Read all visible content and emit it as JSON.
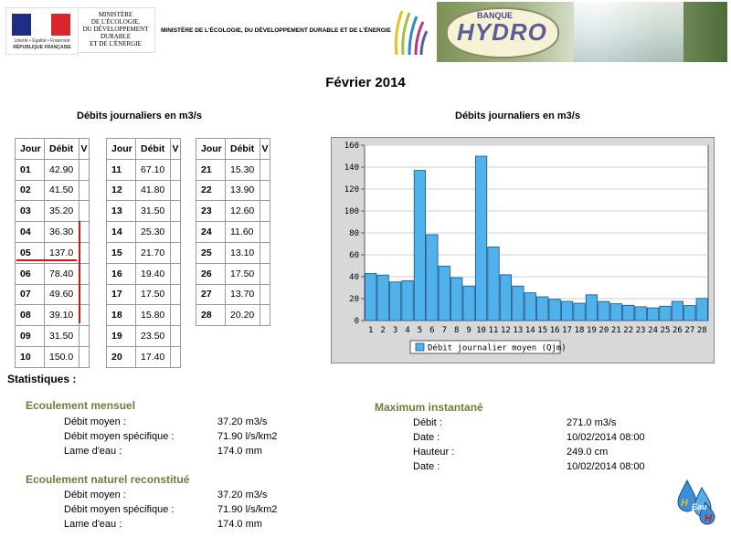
{
  "header": {
    "rf_motto": "Liberté • Égalité • Fraternité",
    "rf_name": "RÉPUBLIQUE FRANÇAISE",
    "ministry_lines": [
      "MINISTÈRE",
      "DE L'ÉCOLOGIE,",
      "DU DÉVELOPPEMENT",
      "DURABLE",
      "ET DE L'ÉNERGIE"
    ],
    "ministry_title": "MINISTÈRE DE L'ÉCOLOGIE, DU DÉVELOPPEMENT DURABLE ET DE L'ÉNERGIE",
    "banner_banque": "BANQUE",
    "banner_hydro": "HYDRO"
  },
  "page_title": "Février 2014",
  "table_section_title": "Débits journaliers en m3/s",
  "chart_section_title": "Débits journaliers en m3/s",
  "table_headers": {
    "day": "Jour",
    "flow": "Débit",
    "v": "V"
  },
  "daily": [
    {
      "day": "01",
      "flow": "42.90"
    },
    {
      "day": "02",
      "flow": "41.50"
    },
    {
      "day": "03",
      "flow": "35.20"
    },
    {
      "day": "04",
      "flow": "36.30"
    },
    {
      "day": "05",
      "flow": "137.0"
    },
    {
      "day": "06",
      "flow": "78.40"
    },
    {
      "day": "07",
      "flow": "49.60"
    },
    {
      "day": "08",
      "flow": "39.10"
    },
    {
      "day": "09",
      "flow": "31.50"
    },
    {
      "day": "10",
      "flow": "150.0"
    },
    {
      "day": "11",
      "flow": "67.10"
    },
    {
      "day": "12",
      "flow": "41.80"
    },
    {
      "day": "13",
      "flow": "31.50"
    },
    {
      "day": "14",
      "flow": "25.30"
    },
    {
      "day": "15",
      "flow": "21.70"
    },
    {
      "day": "16",
      "flow": "19.40"
    },
    {
      "day": "17",
      "flow": "17.50"
    },
    {
      "day": "18",
      "flow": "15.80"
    },
    {
      "day": "19",
      "flow": "23.50"
    },
    {
      "day": "20",
      "flow": "17.40"
    },
    {
      "day": "21",
      "flow": "15.30"
    },
    {
      "day": "22",
      "flow": "13.90"
    },
    {
      "day": "23",
      "flow": "12.60"
    },
    {
      "day": "24",
      "flow": "11.60"
    },
    {
      "day": "25",
      "flow": "13.10"
    },
    {
      "day": "26",
      "flow": "17.50"
    },
    {
      "day": "27",
      "flow": "13.70"
    },
    {
      "day": "28",
      "flow": "20.20"
    }
  ],
  "chart_data": {
    "type": "bar",
    "title": "Débits journaliers en m3/s",
    "categories": [
      "1",
      "2",
      "3",
      "4",
      "5",
      "6",
      "7",
      "8",
      "9",
      "10",
      "11",
      "12",
      "13",
      "14",
      "15",
      "16",
      "17",
      "18",
      "19",
      "20",
      "21",
      "22",
      "23",
      "24",
      "25",
      "26",
      "27",
      "28"
    ],
    "series": [
      {
        "name": "Débit journalier moyen (Qjm)",
        "values": [
          42.9,
          41.5,
          35.2,
          36.3,
          137.0,
          78.4,
          49.6,
          39.1,
          31.5,
          150.0,
          67.1,
          41.8,
          31.5,
          25.3,
          21.7,
          19.4,
          17.5,
          15.8,
          23.5,
          17.4,
          15.3,
          13.9,
          12.6,
          11.6,
          13.1,
          17.5,
          13.7,
          20.2
        ]
      }
    ],
    "ylim": [
      0,
      160
    ],
    "yticks": [
      0,
      20,
      40,
      60,
      80,
      100,
      120,
      140,
      160
    ],
    "grid": true,
    "legend": "bottom",
    "colors": {
      "bar": "#4fb2ea",
      "bar_stroke": "#1a4f8a",
      "plot_bg": "#ffffff",
      "frame_bg": "#d8d8d8"
    }
  },
  "stats": {
    "title": "Statistiques :",
    "monthly": {
      "title": "Ecoulement mensuel",
      "rows": [
        {
          "label": "Débit moyen :",
          "value": "37.20 m3/s"
        },
        {
          "label": "Débit moyen spécifique :",
          "value": "71.90 l/s/km2"
        },
        {
          "label": "Lame d'eau :",
          "value": "174.0 mm"
        }
      ]
    },
    "natural": {
      "title": "Ecoulement naturel reconstitué",
      "rows": [
        {
          "label": "Débit moyen :",
          "value": "37.20 m3/s"
        },
        {
          "label": "Débit moyen spécifique :",
          "value": "71.90 l/s/km2"
        },
        {
          "label": "Lame d'eau :",
          "value": "174.0 mm"
        }
      ]
    },
    "max": {
      "title": "Maximum instantané",
      "rows": [
        {
          "label": "Débit :",
          "value": "271.0 m3/s"
        },
        {
          "label": "Date :",
          "value": "10/02/2014 08:00"
        },
        {
          "label": "Hauteur :",
          "value": "249.0 cm"
        },
        {
          "label": "Date :",
          "value": "10/02/2014 08:00"
        }
      ]
    }
  },
  "footer_logo": {
    "top": "H",
    "middle": "Eau",
    "bottom": "H"
  }
}
